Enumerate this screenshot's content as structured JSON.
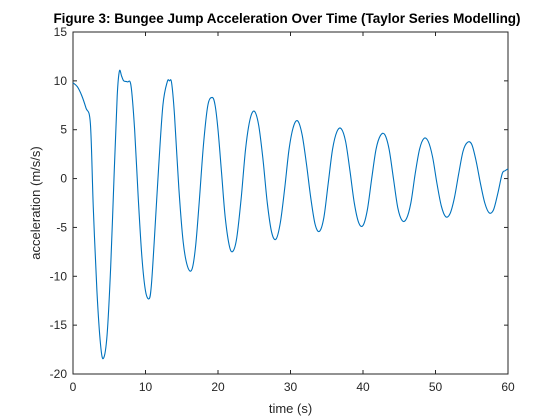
{
  "chart_data": {
    "type": "line",
    "title": "Figure 3: Bungee Jump Acceleration Over Time (Taylor Series Modelling)",
    "xlabel": "time (s)",
    "ylabel": "acceleration (m/s/s)",
    "xlim": [
      0,
      60
    ],
    "ylim": [
      -20,
      15
    ],
    "xticks": [
      0,
      10,
      20,
      30,
      40,
      50,
      60
    ],
    "yticks": [
      -20,
      -15,
      -10,
      -5,
      0,
      5,
      10,
      15
    ],
    "xtick_labels": [
      "0",
      "10",
      "20",
      "30",
      "40",
      "50",
      "60"
    ],
    "ytick_labels": [
      "-20",
      "-15",
      "-10",
      "-5",
      "0",
      "5",
      "10",
      "15"
    ],
    "grid": false,
    "color": "#0072BD",
    "series": [
      {
        "x": [
          0,
          0.6,
          1.2,
          1.8,
          2.4,
          2.8,
          3.3,
          3.8,
          4.2,
          4.7,
          5.2,
          5.7,
          6.1,
          6.4,
          6.7,
          7.0,
          7.5,
          8.0,
          8.5,
          9.0,
          9.5,
          10.0,
          10.5,
          10.8,
          11.2,
          11.8,
          12.4,
          13.0,
          13.3,
          13.6,
          14.0,
          14.6,
          15.2,
          15.8,
          16.4,
          16.9,
          17.4,
          18.0,
          18.6,
          19.2,
          19.6,
          20.0,
          20.5,
          21.0,
          21.6,
          22.1,
          22.6,
          23.2,
          23.8,
          24.4,
          25.0,
          25.6,
          26.2,
          26.8,
          27.4,
          28.0,
          28.6,
          29.2,
          29.8,
          30.4,
          31.0,
          31.6,
          32.2,
          32.8,
          33.4,
          34.0,
          34.6,
          35.2,
          35.8,
          36.4,
          37.0,
          37.6,
          38.2,
          38.8,
          39.4,
          40.0,
          40.6,
          41.2,
          41.8,
          42.4,
          43.0,
          43.6,
          44.2,
          44.8,
          45.4,
          46.0,
          46.6,
          47.2,
          47.8,
          48.4,
          49.0,
          49.6,
          50.2,
          50.8,
          51.4,
          52.0,
          52.6,
          53.2,
          53.8,
          54.4,
          55.0,
          55.6,
          56.2,
          56.8,
          57.4,
          58.0,
          58.6,
          59.2,
          59.6,
          60.0
        ],
        "y": [
          9.8,
          9.4,
          8.5,
          7.2,
          5.6,
          -3.0,
          -11.5,
          -17.0,
          -18.4,
          -16.0,
          -9.0,
          1.0,
          8.5,
          11.0,
          10.5,
          10.0,
          9.9,
          9.5,
          5.0,
          -2.0,
          -8.0,
          -11.5,
          -12.3,
          -11.0,
          -6.5,
          1.0,
          7.5,
          9.9,
          10.0,
          9.8,
          6.5,
          -1.0,
          -6.5,
          -9.0,
          -9.3,
          -7.0,
          -2.5,
          3.5,
          7.5,
          8.3,
          7.5,
          5.0,
          0.5,
          -4.0,
          -7.0,
          -7.4,
          -6.0,
          -2.0,
          3.0,
          6.0,
          6.9,
          5.5,
          2.0,
          -2.5,
          -5.5,
          -6.2,
          -4.5,
          -1.0,
          3.0,
          5.3,
          5.9,
          4.5,
          1.5,
          -2.0,
          -4.7,
          -5.4,
          -4.0,
          -0.5,
          3.0,
          4.8,
          5.1,
          3.8,
          0.8,
          -2.5,
          -4.5,
          -4.8,
          -3.2,
          0.0,
          3.0,
          4.4,
          4.5,
          3.0,
          0.0,
          -3.0,
          -4.3,
          -4.1,
          -2.5,
          0.5,
          3.0,
          4.1,
          3.8,
          2.2,
          -0.5,
          -2.8,
          -3.9,
          -3.6,
          -2.0,
          0.5,
          2.8,
          3.7,
          3.5,
          1.8,
          -0.5,
          -2.5,
          -3.5,
          -3.2,
          -1.5,
          0.5,
          0.8,
          1.0
        ]
      }
    ]
  }
}
